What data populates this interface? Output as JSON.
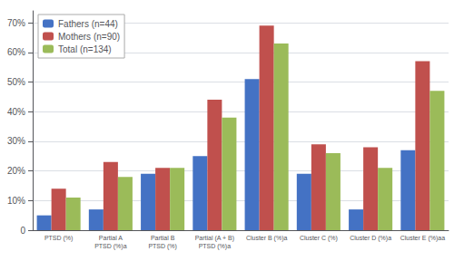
{
  "chart_data": {
    "type": "bar",
    "categories": [
      "PTSD (%)",
      "Partial A\nPTSD (%)a",
      "Partial B\nPTSD (%)",
      "Partial (A + B)\nPTSD (%)a",
      "Cluster B (%)a",
      "Cluster C (%)",
      "Cluster D (%)a",
      "Cluster E (%)aa"
    ],
    "series": [
      {
        "name": "Fathers (n=44)",
        "color": "#4472C4",
        "values": [
          5,
          7,
          19,
          25,
          51,
          19,
          7,
          27
        ]
      },
      {
        "name": "Mothers (n=90)",
        "color": "#C0504D",
        "values": [
          14,
          23,
          21,
          44,
          69,
          29,
          28,
          57
        ]
      },
      {
        "name": "Total (n=134)",
        "color": "#9BBB59",
        "values": [
          11,
          18,
          21,
          38,
          63,
          26,
          21,
          47
        ]
      }
    ],
    "ylim": [
      0,
      74
    ],
    "yticks": [
      0,
      {
        "value": 10,
        "label": "10%"
      },
      {
        "value": 20,
        "label": "20%"
      },
      {
        "value": 30,
        "label": "30%"
      },
      {
        "value": 40,
        "label": "40%"
      },
      {
        "value": 50,
        "label": "50%"
      },
      {
        "value": 60,
        "label": "60%"
      },
      {
        "value": 70,
        "label": "70%"
      }
    ],
    "grid": true,
    "legend": "upper left"
  }
}
